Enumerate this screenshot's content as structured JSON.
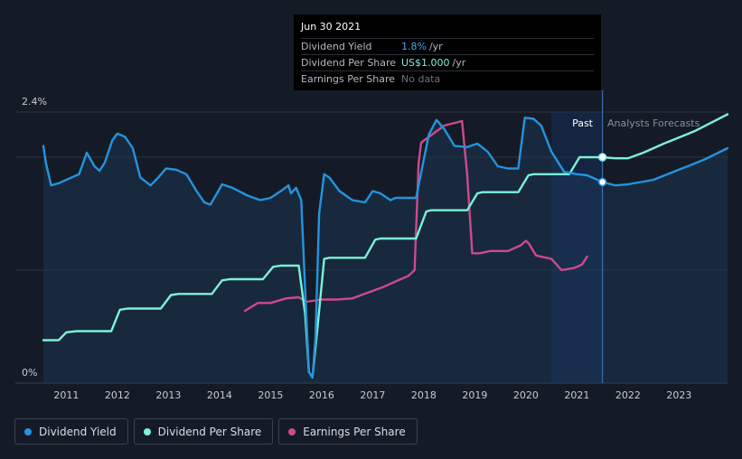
{
  "tooltip": {
    "date": "Jun 30 2021",
    "rows": [
      {
        "label": "Dividend Yield",
        "value": "1.8%",
        "suffix": "/yr"
      },
      {
        "label": "Dividend Per Share",
        "value": "US$1.000",
        "suffix": "/yr"
      },
      {
        "label": "Earnings Per Share",
        "value": "No data",
        "suffix": ""
      }
    ]
  },
  "labels": {
    "past": "Past",
    "forecast": "Analysts Forecasts"
  },
  "legend": [
    {
      "label": "Dividend Yield",
      "color": "#2394df"
    },
    {
      "label": "Dividend Per Share",
      "color": "#7cf1d8"
    },
    {
      "label": "Earnings Per Share",
      "color": "#cc4a8f"
    }
  ],
  "chart_data": {
    "type": "line",
    "y_axis_labels": [
      "2.4%",
      "0%"
    ],
    "ylim": [
      0,
      2.4
    ],
    "xlim": [
      2010.55,
      2023.95
    ],
    "x_ticks": [
      "2011",
      "2012",
      "2013",
      "2014",
      "2015",
      "2016",
      "2017",
      "2018",
      "2019",
      "2020",
      "2021",
      "2022",
      "2023"
    ],
    "x_tick_values": [
      2011,
      2012,
      2013,
      2014,
      2015,
      2016,
      2017,
      2018,
      2019,
      2020,
      2021,
      2022,
      2023
    ],
    "gridlines_y": [
      2.4,
      2.0,
      1.0
    ],
    "past_end": 2021.5,
    "shaded_start": 2020.5,
    "colors": {
      "yield": "#2394df",
      "dps": "#7cf1d8",
      "eps": "#cc4a8f"
    },
    "series": [
      {
        "name": "Dividend Yield",
        "key": "yield",
        "points": [
          [
            2010.55,
            2.1
          ],
          [
            2010.6,
            1.95
          ],
          [
            2010.7,
            1.75
          ],
          [
            2010.85,
            1.77
          ],
          [
            2011.0,
            1.8
          ],
          [
            2011.25,
            1.85
          ],
          [
            2011.4,
            2.04
          ],
          [
            2011.55,
            1.92
          ],
          [
            2011.65,
            1.88
          ],
          [
            2011.75,
            1.95
          ],
          [
            2011.9,
            2.15
          ],
          [
            2012.0,
            2.21
          ],
          [
            2012.15,
            2.18
          ],
          [
            2012.3,
            2.08
          ],
          [
            2012.45,
            1.82
          ],
          [
            2012.65,
            1.75
          ],
          [
            2012.8,
            1.82
          ],
          [
            2012.95,
            1.9
          ],
          [
            2013.15,
            1.89
          ],
          [
            2013.35,
            1.85
          ],
          [
            2013.55,
            1.7
          ],
          [
            2013.7,
            1.6
          ],
          [
            2013.82,
            1.58
          ],
          [
            2013.95,
            1.68
          ],
          [
            2014.05,
            1.76
          ],
          [
            2014.25,
            1.73
          ],
          [
            2014.55,
            1.66
          ],
          [
            2014.8,
            1.62
          ],
          [
            2015.0,
            1.64
          ],
          [
            2015.2,
            1.7
          ],
          [
            2015.35,
            1.75
          ],
          [
            2015.4,
            1.68
          ],
          [
            2015.5,
            1.73
          ],
          [
            2015.6,
            1.62
          ],
          [
            2015.68,
            0.8
          ],
          [
            2015.75,
            0.1
          ],
          [
            2015.82,
            0.05
          ],
          [
            2015.88,
            0.4
          ],
          [
            2015.95,
            1.5
          ],
          [
            2016.05,
            1.85
          ],
          [
            2016.15,
            1.82
          ],
          [
            2016.35,
            1.7
          ],
          [
            2016.6,
            1.62
          ],
          [
            2016.85,
            1.6
          ],
          [
            2017.0,
            1.7
          ],
          [
            2017.15,
            1.68
          ],
          [
            2017.35,
            1.62
          ],
          [
            2017.45,
            1.64
          ],
          [
            2017.65,
            1.64
          ],
          [
            2017.85,
            1.64
          ],
          [
            2018.1,
            2.2
          ],
          [
            2018.25,
            2.33
          ],
          [
            2018.4,
            2.25
          ],
          [
            2018.6,
            2.1
          ],
          [
            2018.85,
            2.09
          ],
          [
            2019.05,
            2.12
          ],
          [
            2019.25,
            2.05
          ],
          [
            2019.45,
            1.92
          ],
          [
            2019.65,
            1.9
          ],
          [
            2019.85,
            1.9
          ],
          [
            2019.98,
            2.35
          ],
          [
            2020.15,
            2.34
          ],
          [
            2020.3,
            2.28
          ],
          [
            2020.5,
            2.05
          ],
          [
            2020.75,
            1.87
          ],
          [
            2021.0,
            1.85
          ],
          [
            2021.2,
            1.84
          ],
          [
            2021.5,
            1.78
          ],
          [
            2021.75,
            1.75
          ],
          [
            2022.0,
            1.76
          ],
          [
            2022.5,
            1.8
          ],
          [
            2023.0,
            1.89
          ],
          [
            2023.5,
            1.98
          ],
          [
            2023.95,
            2.08
          ]
        ]
      },
      {
        "name": "Dividend Per Share",
        "key": "dps",
        "points": [
          [
            2010.55,
            0.38
          ],
          [
            2010.85,
            0.38
          ],
          [
            2011.0,
            0.45
          ],
          [
            2011.2,
            0.46
          ],
          [
            2011.88,
            0.46
          ],
          [
            2012.05,
            0.65
          ],
          [
            2012.2,
            0.66
          ],
          [
            2012.85,
            0.66
          ],
          [
            2013.05,
            0.78
          ],
          [
            2013.2,
            0.79
          ],
          [
            2013.85,
            0.79
          ],
          [
            2014.05,
            0.91
          ],
          [
            2014.2,
            0.92
          ],
          [
            2014.85,
            0.92
          ],
          [
            2015.05,
            1.03
          ],
          [
            2015.2,
            1.04
          ],
          [
            2015.55,
            1.04
          ],
          [
            2015.68,
            0.6
          ],
          [
            2015.75,
            0.1
          ],
          [
            2015.82,
            0.05
          ],
          [
            2015.92,
            0.5
          ],
          [
            2016.05,
            1.1
          ],
          [
            2016.15,
            1.11
          ],
          [
            2016.85,
            1.11
          ],
          [
            2017.05,
            1.27
          ],
          [
            2017.15,
            1.28
          ],
          [
            2017.85,
            1.28
          ],
          [
            2018.05,
            1.52
          ],
          [
            2018.15,
            1.53
          ],
          [
            2018.85,
            1.53
          ],
          [
            2019.05,
            1.68
          ],
          [
            2019.15,
            1.69
          ],
          [
            2019.85,
            1.69
          ],
          [
            2020.05,
            1.84
          ],
          [
            2020.15,
            1.85
          ],
          [
            2020.85,
            1.85
          ],
          [
            2021.05,
            2.0
          ],
          [
            2021.15,
            2.0
          ],
          [
            2021.5,
            2.0
          ],
          [
            2021.75,
            1.99
          ],
          [
            2022.0,
            1.99
          ],
          [
            2022.3,
            2.04
          ],
          [
            2022.7,
            2.12
          ],
          [
            2023.3,
            2.23
          ],
          [
            2023.95,
            2.38
          ]
        ]
      },
      {
        "name": "Earnings Per Share",
        "key": "eps",
        "points": [
          [
            2014.5,
            0.64
          ],
          [
            2014.75,
            0.71
          ],
          [
            2015.0,
            0.71
          ],
          [
            2015.3,
            0.75
          ],
          [
            2015.55,
            0.76
          ],
          [
            2015.7,
            0.72
          ],
          [
            2016.0,
            0.74
          ],
          [
            2016.3,
            0.74
          ],
          [
            2016.6,
            0.75
          ],
          [
            2016.9,
            0.8
          ],
          [
            2017.2,
            0.85
          ],
          [
            2017.45,
            0.9
          ],
          [
            2017.7,
            0.95
          ],
          [
            2017.82,
            1.0
          ],
          [
            2017.9,
            1.95
          ],
          [
            2017.95,
            2.13
          ],
          [
            2018.1,
            2.18
          ],
          [
            2018.4,
            2.28
          ],
          [
            2018.75,
            2.32
          ],
          [
            2018.85,
            1.85
          ],
          [
            2018.95,
            1.15
          ],
          [
            2019.1,
            1.15
          ],
          [
            2019.3,
            1.17
          ],
          [
            2019.65,
            1.17
          ],
          [
            2019.9,
            1.22
          ],
          [
            2020.0,
            1.26
          ],
          [
            2020.05,
            1.24
          ],
          [
            2020.2,
            1.13
          ],
          [
            2020.5,
            1.1
          ],
          [
            2020.7,
            1.0
          ],
          [
            2020.95,
            1.02
          ],
          [
            2021.1,
            1.05
          ],
          [
            2021.2,
            1.12
          ]
        ]
      }
    ]
  }
}
